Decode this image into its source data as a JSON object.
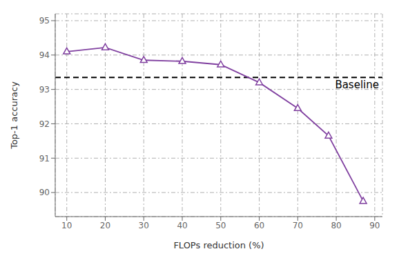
{
  "chart_data": {
    "type": "line",
    "xlabel": "FLOPs reduction (%)",
    "ylabel": "Top-1 accuracy",
    "x": [
      10,
      20,
      30,
      40,
      50,
      60,
      70,
      78,
      87
    ],
    "series": [
      {
        "color": "#8040A0",
        "marker": "triangle",
        "line_style": "solid",
        "values": [
          94.1,
          94.22,
          93.85,
          93.82,
          93.72,
          93.2,
          92.45,
          91.65,
          89.75
        ]
      }
    ],
    "baseline": {
      "value": 93.35,
      "label": "Baseline",
      "color": "#000000",
      "line_style": "dashed"
    },
    "xlim": [
      7,
      92
    ],
    "xticks": [
      10,
      20,
      30,
      40,
      50,
      60,
      70,
      80,
      90
    ],
    "ylim": [
      89.3,
      95.2
    ],
    "yticks": [
      90,
      91,
      92,
      93,
      94,
      95
    ],
    "grid": true
  }
}
